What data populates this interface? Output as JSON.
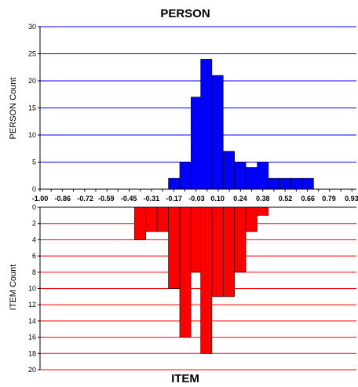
{
  "chart_data": [
    {
      "type": "bar",
      "title": "PERSON",
      "ylabel": "PERSON Count",
      "xlabel": "",
      "ylim": [
        0,
        30
      ],
      "yticks": [
        0,
        5,
        10,
        15,
        20,
        25,
        30
      ],
      "grid": true,
      "bar_color": "#0000ff",
      "grid_color": "#0000ff",
      "bars": [
        {
          "x": -0.17,
          "value": 2
        },
        {
          "x": -0.1,
          "value": 5
        },
        {
          "x": -0.03,
          "value": 17
        },
        {
          "x": 0.03,
          "value": 24
        },
        {
          "x": 0.1,
          "value": 21
        },
        {
          "x": 0.17,
          "value": 7
        },
        {
          "x": 0.24,
          "value": 5
        },
        {
          "x": 0.31,
          "value": 4
        },
        {
          "x": 0.38,
          "value": 5
        },
        {
          "x": 0.45,
          "value": 2
        },
        {
          "x": 0.52,
          "value": 2
        },
        {
          "x": 0.59,
          "value": 2
        },
        {
          "x": 0.66,
          "value": 2
        }
      ]
    },
    {
      "type": "bar",
      "title": "ITEM",
      "ylabel": "ITEM Count",
      "xlabel": "",
      "ylim": [
        0,
        20
      ],
      "yticks": [
        0,
        2,
        4,
        6,
        8,
        10,
        12,
        14,
        16,
        18,
        20
      ],
      "inverted": true,
      "grid": true,
      "bar_color": "#ff0000",
      "grid_color": "#ff0000",
      "bars": [
        {
          "x": -0.38,
          "value": 4
        },
        {
          "x": -0.31,
          "value": 3
        },
        {
          "x": -0.24,
          "value": 3
        },
        {
          "x": -0.17,
          "value": 10
        },
        {
          "x": -0.1,
          "value": 16
        },
        {
          "x": -0.03,
          "value": 8
        },
        {
          "x": 0.03,
          "value": 18
        },
        {
          "x": 0.1,
          "value": 11
        },
        {
          "x": 0.17,
          "value": 11
        },
        {
          "x": 0.24,
          "value": 8
        },
        {
          "x": 0.31,
          "value": 3
        },
        {
          "x": 0.38,
          "value": 1
        }
      ]
    }
  ],
  "shared_x_axis": {
    "tick_labels": [
      "-1.00",
      "-0.86",
      "-0.72",
      "-0.59",
      "-0.45",
      "-0.31",
      "-0.17",
      "-0.03",
      "0.10",
      "0.24",
      "0.38",
      "0.52",
      "0.66",
      "0.79",
      "0.93"
    ],
    "bin_width": 0.069,
    "range": [
      -1.0,
      0.96
    ]
  }
}
